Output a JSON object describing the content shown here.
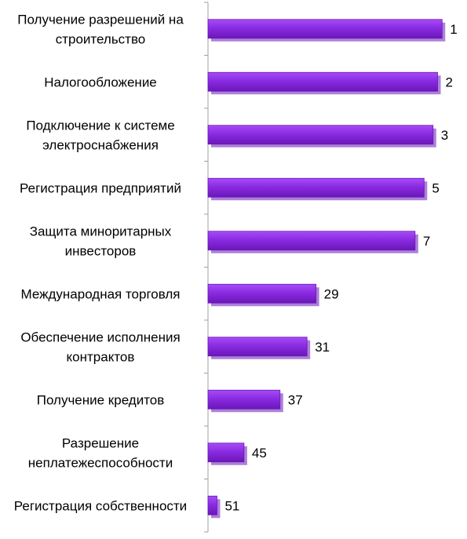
{
  "chart_data": {
    "type": "bar",
    "orientation": "horizontal",
    "categories": [
      [
        "Получение разрешений на",
        "строительство"
      ],
      [
        "Налогообложение"
      ],
      [
        "Подключение к системе",
        "электроснабжения"
      ],
      [
        "Регистрация предприятий"
      ],
      [
        "Защита миноритарных",
        "инвесторов"
      ],
      [
        "Международная торговля"
      ],
      [
        "Обеспечение исполнения",
        "контрактов"
      ],
      [
        "Получение кредитов"
      ],
      [
        "Разрешение",
        "неплатежеспособности"
      ],
      [
        "Регистрация собственности"
      ]
    ],
    "values": [
      1,
      2,
      3,
      5,
      7,
      29,
      31,
      37,
      45,
      51
    ],
    "data_labels": [
      "1",
      "2",
      "3",
      "5",
      "7",
      "29",
      "31",
      "37",
      "45",
      "51"
    ],
    "xlim": [
      0,
      53
    ],
    "axis": "reversed",
    "grid": false,
    "legend": "none",
    "colors": {
      "bar_fill": "#8a2be2",
      "bar_light": "#a64df5",
      "bar_dark": "#6a17b8",
      "axis": "#a0a0a0"
    }
  }
}
